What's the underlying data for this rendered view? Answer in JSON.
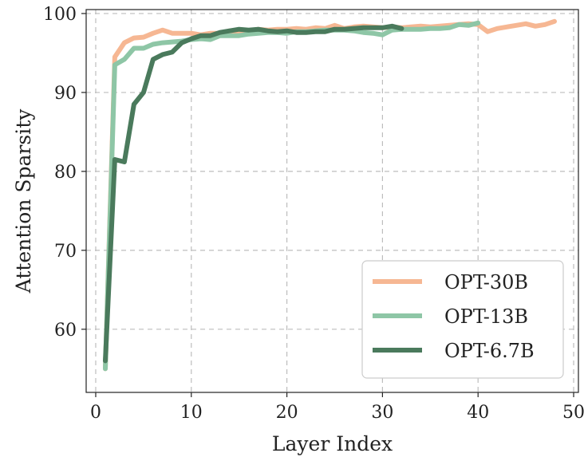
{
  "chart_data": {
    "type": "line",
    "title": "",
    "xlabel": "Layer Index",
    "ylabel": "Attention Sparsity",
    "xlim": [
      -1,
      50.5
    ],
    "ylim": [
      52,
      100.5
    ],
    "xticks": [
      0,
      10,
      20,
      30,
      40,
      50
    ],
    "yticks": [
      60,
      70,
      80,
      90,
      100
    ],
    "grid": true,
    "legend_position": "bottom-right",
    "series": [
      {
        "name": "OPT-30B",
        "color": "#f6b793",
        "x": [
          1,
          2,
          3,
          4,
          5,
          6,
          7,
          8,
          9,
          10,
          11,
          12,
          13,
          14,
          15,
          16,
          17,
          18,
          19,
          20,
          21,
          22,
          23,
          24,
          25,
          26,
          27,
          28,
          29,
          30,
          31,
          32,
          33,
          34,
          35,
          36,
          37,
          38,
          39,
          40,
          41,
          42,
          43,
          44,
          45,
          46,
          47,
          48
        ],
        "y": [
          55,
          94.5,
          96.3,
          96.9,
          97,
          97.5,
          97.9,
          97.5,
          97.5,
          97.5,
          97.3,
          97.5,
          97.5,
          97.8,
          97.7,
          97.8,
          98,
          97.9,
          98,
          98,
          98.1,
          98,
          98.2,
          98.1,
          98.5,
          98.1,
          98.3,
          98.4,
          98.3,
          98.2,
          98.3,
          98.2,
          98.3,
          98.4,
          98.3,
          98.4,
          98.5,
          98.6,
          98.7,
          98.6,
          97.7,
          98.1,
          98.3,
          98.5,
          98.7,
          98.4,
          98.6,
          99
        ]
      },
      {
        "name": "OPT-13B",
        "color": "#8ec6a6",
        "x": [
          1,
          2,
          3,
          4,
          5,
          6,
          7,
          8,
          9,
          10,
          11,
          12,
          13,
          14,
          15,
          16,
          17,
          18,
          19,
          20,
          21,
          22,
          23,
          24,
          25,
          26,
          27,
          28,
          29,
          30,
          31,
          32,
          33,
          34,
          35,
          36,
          37,
          38,
          39,
          40
        ],
        "y": [
          55,
          93.5,
          94.2,
          95.6,
          95.6,
          96.1,
          96.3,
          96.4,
          96.5,
          96.7,
          96.8,
          96.7,
          97.2,
          97.2,
          97.2,
          97.4,
          97.5,
          97.6,
          97.6,
          97.5,
          97.7,
          97.7,
          97.8,
          97.9,
          97.9,
          97.9,
          97.8,
          97.6,
          97.5,
          97.3,
          97.9,
          98,
          98,
          98,
          98.1,
          98.1,
          98.2,
          98.6,
          98.5,
          98.8
        ]
      },
      {
        "name": "OPT-6.7B",
        "color": "#4a7a5c",
        "x": [
          1,
          2,
          3,
          4,
          5,
          6,
          7,
          8,
          9,
          10,
          11,
          12,
          13,
          14,
          15,
          16,
          17,
          18,
          19,
          20,
          21,
          22,
          23,
          24,
          25,
          26,
          27,
          28,
          29,
          30,
          31,
          32
        ],
        "y": [
          56,
          81.5,
          81.2,
          88.5,
          90,
          94.2,
          94.8,
          95.1,
          96.3,
          96.8,
          97.2,
          97.2,
          97.6,
          97.8,
          98,
          97.9,
          98,
          97.8,
          97.7,
          97.8,
          97.6,
          97.6,
          97.7,
          97.7,
          98,
          98,
          98.1,
          98.2,
          98.2,
          98.2,
          98.4,
          98.1
        ]
      }
    ]
  }
}
